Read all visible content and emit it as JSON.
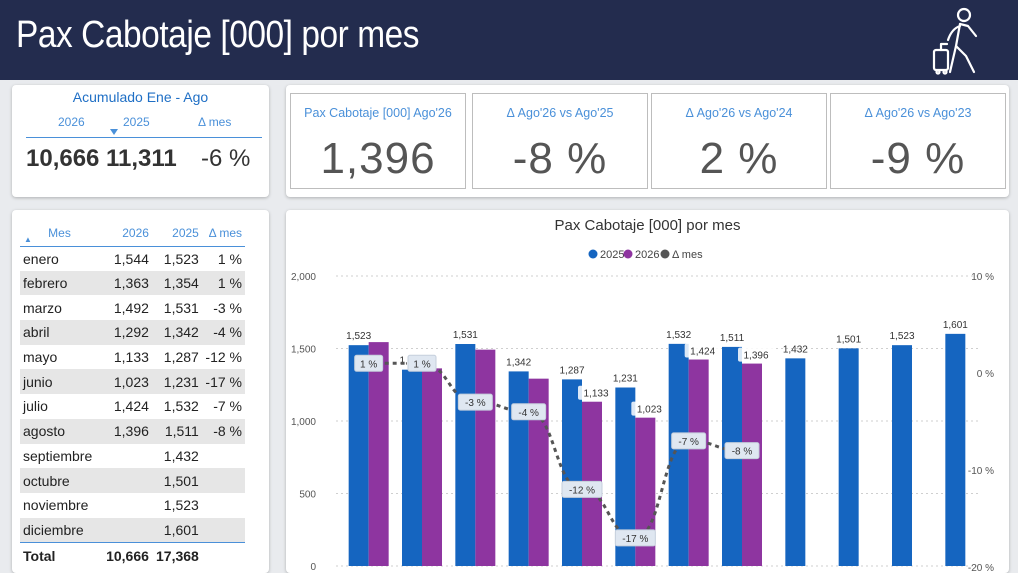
{
  "header": {
    "title": "Pax Cabotaje [000] por mes",
    "icon": "traveler-icon"
  },
  "accumulated": {
    "title": "Acumulado Ene - Ago",
    "col_2026": "2026",
    "col_2025": "2025",
    "col_delta": "Δ mes",
    "val_2026": "10,666",
    "val_2025": "11,311",
    "val_delta": "-6 %"
  },
  "kpis": [
    {
      "label": "Pax Cabotaje [000] Ago'26",
      "value": "1,396"
    },
    {
      "label": "Δ Ago'26 vs Ago'25",
      "value": "-8 %"
    },
    {
      "label": "Δ Ago'26 vs Ago'24",
      "value": "2 %"
    },
    {
      "label": "Δ Ago'26 vs Ago'23",
      "value": "-9 %"
    }
  ],
  "table": {
    "headers": {
      "mes": "Mes",
      "y2026": "2026",
      "y2025": "2025",
      "delta": "Δ mes"
    },
    "rows": [
      {
        "mes": "enero",
        "y2026": "1,544",
        "y2025": "1,523",
        "delta": "1 %"
      },
      {
        "mes": "febrero",
        "y2026": "1,363",
        "y2025": "1,354",
        "delta": "1 %"
      },
      {
        "mes": "marzo",
        "y2026": "1,492",
        "y2025": "1,531",
        "delta": "-3 %"
      },
      {
        "mes": "abril",
        "y2026": "1,292",
        "y2025": "1,342",
        "delta": "-4 %"
      },
      {
        "mes": "mayo",
        "y2026": "1,133",
        "y2025": "1,287",
        "delta": "-12 %"
      },
      {
        "mes": "junio",
        "y2026": "1,023",
        "y2025": "1,231",
        "delta": "-17 %"
      },
      {
        "mes": "julio",
        "y2026": "1,424",
        "y2025": "1,532",
        "delta": "-7 %"
      },
      {
        "mes": "agosto",
        "y2026": "1,396",
        "y2025": "1,511",
        "delta": "-8 %"
      },
      {
        "mes": "septiembre",
        "y2026": "",
        "y2025": "1,432",
        "delta": ""
      },
      {
        "mes": "octubre",
        "y2026": "",
        "y2025": "1,501",
        "delta": ""
      },
      {
        "mes": "noviembre",
        "y2026": "",
        "y2025": "1,523",
        "delta": ""
      },
      {
        "mes": "diciembre",
        "y2026": "",
        "y2025": "1,601",
        "delta": ""
      }
    ],
    "total": {
      "mes": "Total",
      "y2026": "10,666",
      "y2025": "17,368"
    }
  },
  "colors": {
    "header_bg": "#232c4e",
    "accent": "#4a90d9",
    "series_2025": "#1565c0",
    "series_2026": "#8e35a0",
    "delta": "#555555"
  },
  "chart_data": {
    "type": "bar",
    "title": "Pax Cabotaje [000] por mes",
    "legend": [
      "2025",
      "2026",
      "Δ mes"
    ],
    "legend_position": "top-center",
    "ylim": [
      0,
      2000
    ],
    "yticks": [
      "0",
      "500",
      "1,000",
      "1,500",
      "2,000"
    ],
    "y2ticks": [
      "10 %",
      "0 %",
      "-10 %",
      "-20 %"
    ],
    "y2lim": [
      -20,
      10
    ],
    "series": [
      {
        "name": "2025",
        "values": [
          1523,
          1354,
          1531,
          1342,
          1287,
          1231,
          1532,
          1511,
          1432,
          1501,
          1523,
          1601
        ],
        "labels": [
          "1,523",
          "1,354",
          "1,531",
          "1,342",
          "1,287",
          "1,231",
          "1,532",
          "1,511",
          "1,432",
          "1,501",
          "1,523",
          "1,601"
        ]
      },
      {
        "name": "2026",
        "values": [
          1544,
          1363,
          1492,
          1292,
          1133,
          1023,
          1424,
          1396
        ],
        "labels": [
          "",
          "",
          "",
          "",
          "1,133",
          "1,023",
          "1,424",
          "1,396"
        ]
      },
      {
        "name": "Δ mes",
        "values": [
          1,
          1,
          -3,
          -4,
          -12,
          -17,
          -7,
          -8
        ],
        "labels": [
          "1 %",
          "1 %",
          "-3 %",
          "-4 %",
          "-12 %",
          "-17 %",
          "-7 %",
          "-8 %"
        ]
      }
    ]
  }
}
